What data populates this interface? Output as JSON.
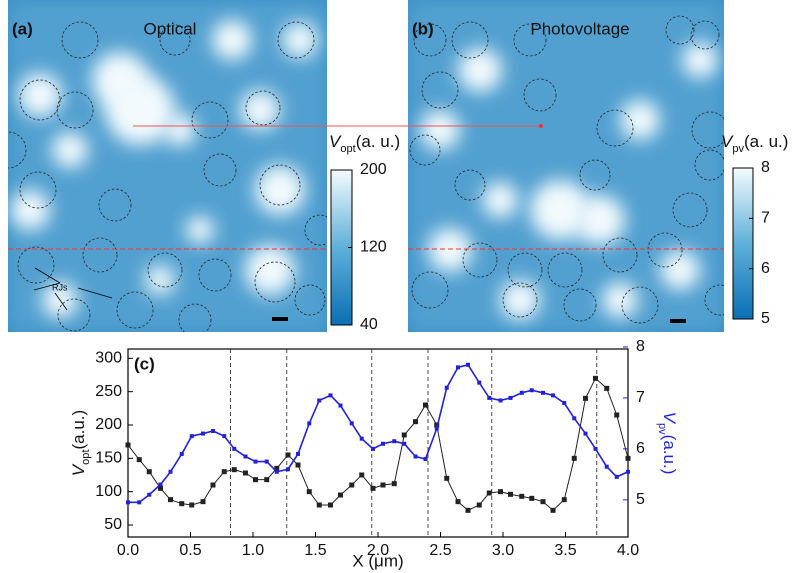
{
  "chart_data": [
    {
      "type": "image",
      "panel_label": "(a)",
      "title": "Optical",
      "colorbar_label": {
        "symbol": "V",
        "subscript": "opt",
        "unit": "(a. u.)"
      },
      "colorbar_lim": [
        40,
        200
      ],
      "colorbar_ticks": [
        200,
        120,
        40
      ],
      "annotation": "RJs"
    },
    {
      "type": "image",
      "panel_label": "(b)",
      "title": "Photovoltage",
      "colorbar_label": {
        "symbol": "V",
        "subscript": "pv",
        "unit": "(a. u.)"
      },
      "colorbar_lim": [
        5,
        8
      ],
      "colorbar_ticks": [
        8,
        7,
        6,
        5
      ]
    },
    {
      "type": "line",
      "panel_label": "(c)",
      "x_label": "X (μm)",
      "y_label": {
        "symbol": "V",
        "subscript": "opt",
        "unit": "(a.u.)"
      },
      "y2_label": {
        "symbol": "V",
        "subscript": "pv",
        "unit": "(a.u.)"
      },
      "xlim": [
        0,
        4
      ],
      "xticks": [
        {
          "value": 0,
          "label": "0.0"
        },
        0.5,
        {
          "value": 1,
          "label": "1.0"
        },
        1.5,
        {
          "value": 2,
          "label": "2.0"
        },
        2.5,
        {
          "value": 3,
          "label": "3.0"
        },
        3.5,
        {
          "value": 4,
          "label": "4.0"
        }
      ],
      "ylim": [
        32,
        314
      ],
      "yticks": [
        50,
        100,
        150,
        200,
        250,
        300
      ],
      "y2lim": [
        4.27,
        7.96
      ],
      "y2ticks": [
        5,
        6,
        7,
        8
      ],
      "vlines": [
        0.82,
        1.27,
        1.95,
        2.4,
        2.91,
        3.75
      ],
      "x": [
        0,
        0.09,
        0.17,
        0.26,
        0.34,
        0.43,
        0.51,
        0.6,
        0.68,
        0.77,
        0.85,
        0.94,
        1.02,
        1.11,
        1.19,
        1.28,
        1.36,
        1.45,
        1.53,
        1.62,
        1.7,
        1.79,
        1.87,
        1.96,
        2.04,
        2.13,
        2.21,
        2.3,
        2.38,
        2.47,
        2.55,
        2.64,
        2.72,
        2.81,
        2.89,
        2.98,
        3.06,
        3.15,
        3.23,
        3.32,
        3.4,
        3.49,
        3.57,
        3.66,
        3.74,
        3.83,
        3.91,
        4.0
      ],
      "series": [
        {
          "color": "#222222",
          "values": [
            170,
            148,
            130,
            105,
            88,
            82,
            80,
            85,
            110,
            130,
            133,
            128,
            118,
            118,
            135,
            155,
            140,
            100,
            80,
            80,
            95,
            110,
            125,
            105,
            110,
            112,
            185,
            205,
            230,
            200,
            120,
            85,
            72,
            80,
            98,
            100,
            96,
            93,
            90,
            85,
            72,
            88,
            150,
            240,
            270,
            255,
            215,
            150
          ]
        },
        {
          "color": "#2222dd",
          "axis": "y2",
          "values": [
            4.95,
            4.95,
            5.1,
            5.3,
            5.55,
            5.9,
            6.25,
            6.3,
            6.35,
            6.25,
            6.0,
            5.85,
            5.75,
            5.75,
            5.55,
            5.6,
            5.9,
            6.5,
            6.95,
            7.05,
            6.85,
            6.5,
            6.2,
            6.0,
            6.1,
            6.15,
            6.1,
            5.85,
            5.8,
            6.4,
            7.2,
            7.6,
            7.65,
            7.3,
            7.0,
            6.95,
            7.0,
            7.1,
            7.15,
            7.1,
            7.05,
            6.9,
            6.6,
            6.3,
            6.0,
            5.65,
            5.45,
            5.55
          ]
        }
      ]
    }
  ]
}
